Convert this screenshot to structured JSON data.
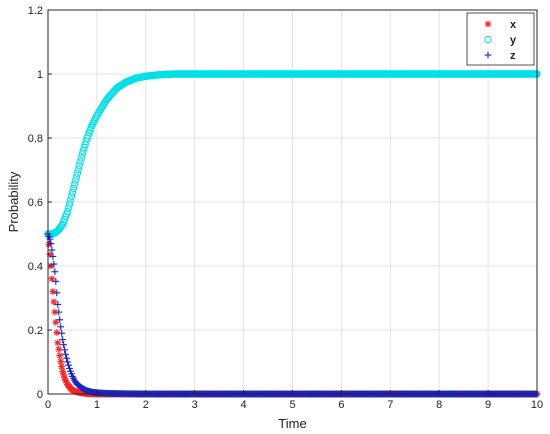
{
  "chart_data": {
    "type": "scatter",
    "title": "",
    "xlabel": "Time",
    "ylabel": "Probability",
    "xlim": [
      0,
      10
    ],
    "ylim": [
      0,
      1.2
    ],
    "grid": true,
    "legend_position": "top-right",
    "x_ticks": [
      "0",
      "1",
      "2",
      "3",
      "4",
      "5",
      "6",
      "7",
      "8",
      "9",
      "10"
    ],
    "y_ticks": [
      "0",
      "0.2",
      "0.4",
      "0.6",
      "0.8",
      "1",
      "1.2"
    ],
    "series": [
      {
        "name": "x",
        "marker": "star",
        "color": "#ff2020",
        "x": [
          0,
          0.05,
          0.1,
          0.15,
          0.2,
          0.25,
          0.3,
          0.35,
          0.4,
          0.45,
          0.5,
          0.6,
          0.7,
          0.8,
          1.0,
          2.0,
          3.0,
          4.0,
          5.0,
          6.0,
          7.0,
          8.0,
          9.0,
          10.0
        ],
        "values": [
          0.5,
          0.42,
          0.32,
          0.24,
          0.16,
          0.11,
          0.07,
          0.045,
          0.03,
          0.02,
          0.012,
          0.006,
          0.003,
          0.001,
          0,
          0,
          0,
          0,
          0,
          0,
          0,
          0,
          0,
          0
        ]
      },
      {
        "name": "y",
        "marker": "circle",
        "color": "#00e0e8",
        "x": [
          0,
          0.1,
          0.2,
          0.3,
          0.4,
          0.5,
          0.6,
          0.7,
          0.8,
          0.9,
          1.0,
          1.2,
          1.4,
          1.6,
          1.8,
          2.0,
          2.3,
          2.6,
          3.0,
          4.0,
          5.0,
          6.0,
          7.0,
          8.0,
          9.0,
          10.0
        ],
        "values": [
          0.5,
          0.5,
          0.51,
          0.53,
          0.57,
          0.63,
          0.69,
          0.75,
          0.8,
          0.84,
          0.87,
          0.92,
          0.955,
          0.975,
          0.987,
          0.993,
          0.998,
          1.0,
          1.0,
          1.0,
          1.0,
          1.0,
          1.0,
          1.0,
          1.0,
          1.0
        ]
      },
      {
        "name": "z",
        "marker": "plus",
        "color": "#1a22c8",
        "x": [
          0,
          0.05,
          0.1,
          0.15,
          0.2,
          0.25,
          0.3,
          0.35,
          0.4,
          0.45,
          0.5,
          0.55,
          0.6,
          0.7,
          0.8,
          0.9,
          1.0,
          1.2,
          1.5,
          2.0,
          3.0,
          4.0,
          5.0,
          6.0,
          7.0,
          8.0,
          9.0,
          10.0
        ],
        "values": [
          0.5,
          0.48,
          0.43,
          0.37,
          0.28,
          0.22,
          0.17,
          0.13,
          0.1,
          0.075,
          0.055,
          0.04,
          0.03,
          0.018,
          0.01,
          0.006,
          0.004,
          0.002,
          0.001,
          0,
          0,
          0,
          0,
          0,
          0,
          0,
          0,
          0
        ]
      }
    ]
  }
}
